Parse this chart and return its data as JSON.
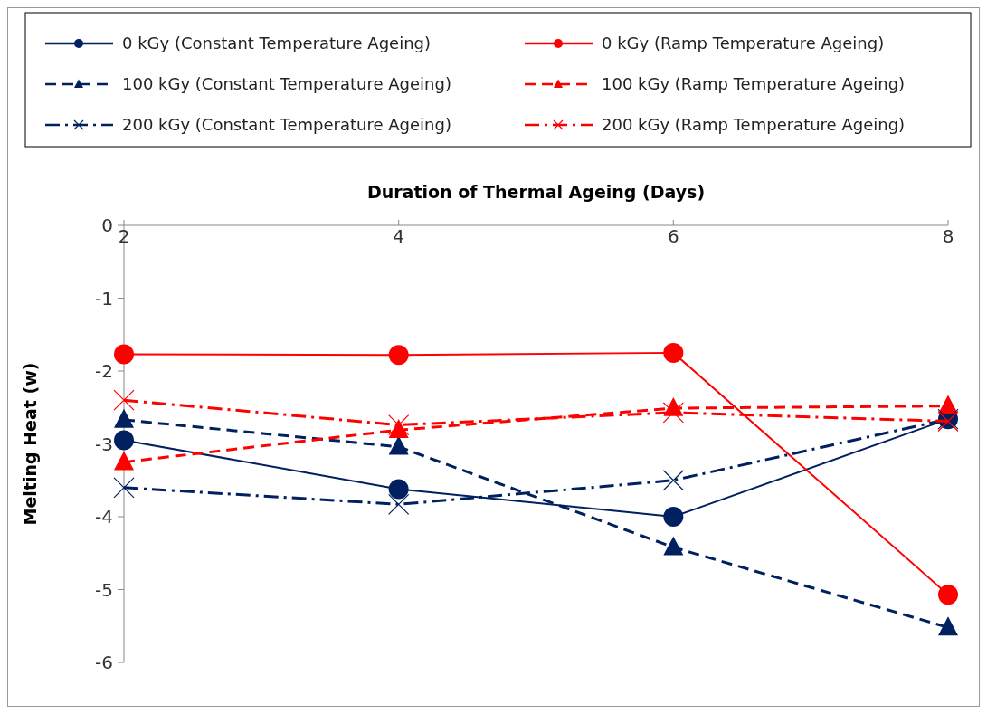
{
  "chart_data": {
    "type": "line",
    "xlabel": "Duration of Thermal Ageing (Days)",
    "ylabel": "Melting Heat (w)",
    "x": [
      2,
      4,
      6,
      8
    ],
    "xlim": [
      2,
      8
    ],
    "xticks": [
      2,
      4,
      6,
      8
    ],
    "ylim": [
      -6,
      0
    ],
    "yticks": [
      -6,
      -5,
      -4,
      -3,
      -2,
      -1,
      0
    ],
    "grid": false,
    "legend": "top",
    "series": [
      {
        "name": "0 kGy (Constant Temperature Ageing)",
        "color": "#002060",
        "marker": "circle",
        "line_style": "solid",
        "values": [
          -2.95,
          -3.62,
          -4.0,
          -2.66
        ]
      },
      {
        "name": "0 kGy (Ramp Temperature Ageing)",
        "color": "#ff0000",
        "marker": "circle",
        "line_style": "solid",
        "values": [
          -1.77,
          -1.78,
          -1.75,
          -5.07
        ]
      },
      {
        "name": "100 kGy (Constant Temperature Ageing)",
        "color": "#002060",
        "marker": "triangle",
        "line_style": "dashed",
        "values": [
          -2.67,
          -3.04,
          -4.42,
          -5.52
        ]
      },
      {
        "name": "100 kGy (Ramp Temperature Ageing)",
        "color": "#ff0000",
        "marker": "triangle",
        "line_style": "dashed",
        "values": [
          -3.25,
          -2.81,
          -2.51,
          -2.48
        ]
      },
      {
        "name": "200 kGy (Constant Temperature Ageing)",
        "color": "#002060",
        "marker": "cross",
        "line_style": "dotted",
        "values": [
          -3.6,
          -3.83,
          -3.5,
          -2.66
        ]
      },
      {
        "name": "200 kGy (Ramp Temperature Ageing)",
        "color": "#ff0000",
        "marker": "cross",
        "line_style": "dotted",
        "values": [
          -2.4,
          -2.74,
          -2.57,
          -2.69
        ]
      }
    ]
  }
}
